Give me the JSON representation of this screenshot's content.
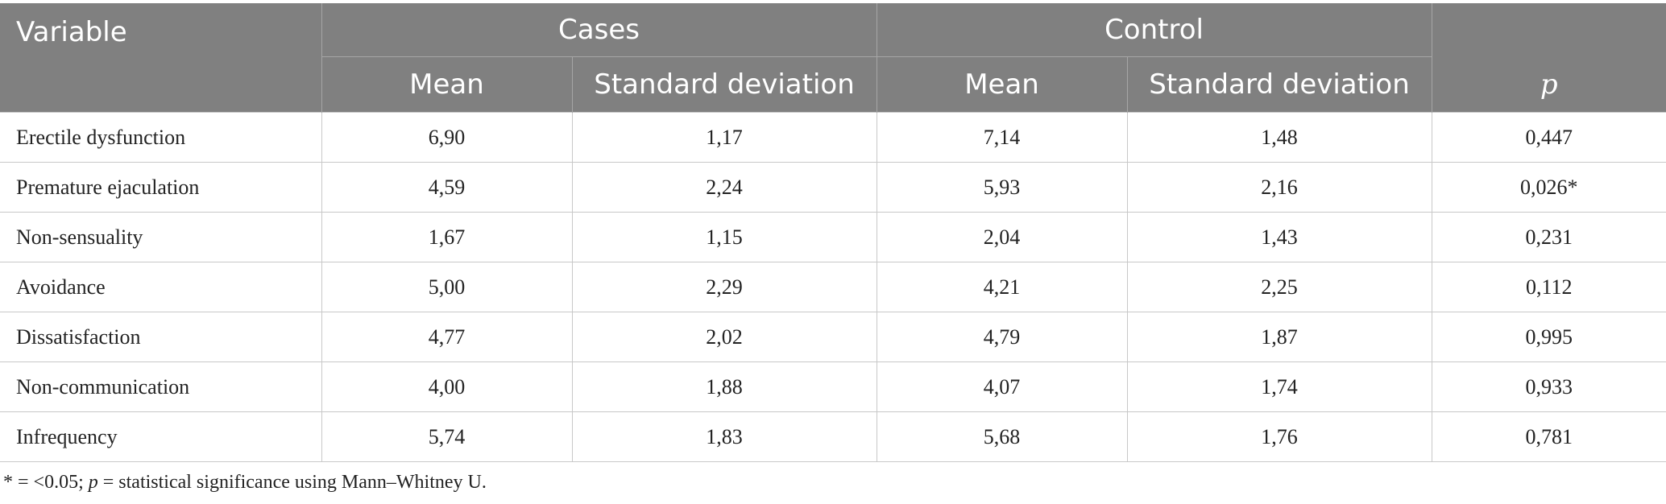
{
  "header": {
    "variable": "Variable",
    "cases": "Cases",
    "control": "Control",
    "mean": "Mean",
    "sd": "Standard deviation",
    "p": "p"
  },
  "rows": [
    {
      "variable": "Erectile dysfunction",
      "cases_mean": "6,90",
      "cases_sd": "1,17",
      "control_mean": "7,14",
      "control_sd": "1,48",
      "p": "0,447"
    },
    {
      "variable": "Premature ejaculation",
      "cases_mean": "4,59",
      "cases_sd": "2,24",
      "control_mean": "5,93",
      "control_sd": "2,16",
      "p": "0,026*"
    },
    {
      "variable": "Non-sensuality",
      "cases_mean": "1,67",
      "cases_sd": "1,15",
      "control_mean": "2,04",
      "control_sd": "1,43",
      "p": "0,231"
    },
    {
      "variable": "Avoidance",
      "cases_mean": "5,00",
      "cases_sd": "2,29",
      "control_mean": "4,21",
      "control_sd": "2,25",
      "p": "0,112"
    },
    {
      "variable": "Dissatisfaction",
      "cases_mean": "4,77",
      "cases_sd": "2,02",
      "control_mean": "4,79",
      "control_sd": "1,87",
      "p": "0,995"
    },
    {
      "variable": "Non-communication",
      "cases_mean": "4,00",
      "cases_sd": "1,88",
      "control_mean": "4,07",
      "control_sd": "1,74",
      "p": "0,933"
    },
    {
      "variable": "Infrequency",
      "cases_mean": "5,74",
      "cases_sd": "1,83",
      "control_mean": "5,68",
      "control_sd": "1,76",
      "p": "0,781"
    }
  ],
  "footnote": {
    "part1": "* = <0.05; ",
    "p": "p",
    "part2": " = statistical significance using Mann–Whitney U."
  }
}
